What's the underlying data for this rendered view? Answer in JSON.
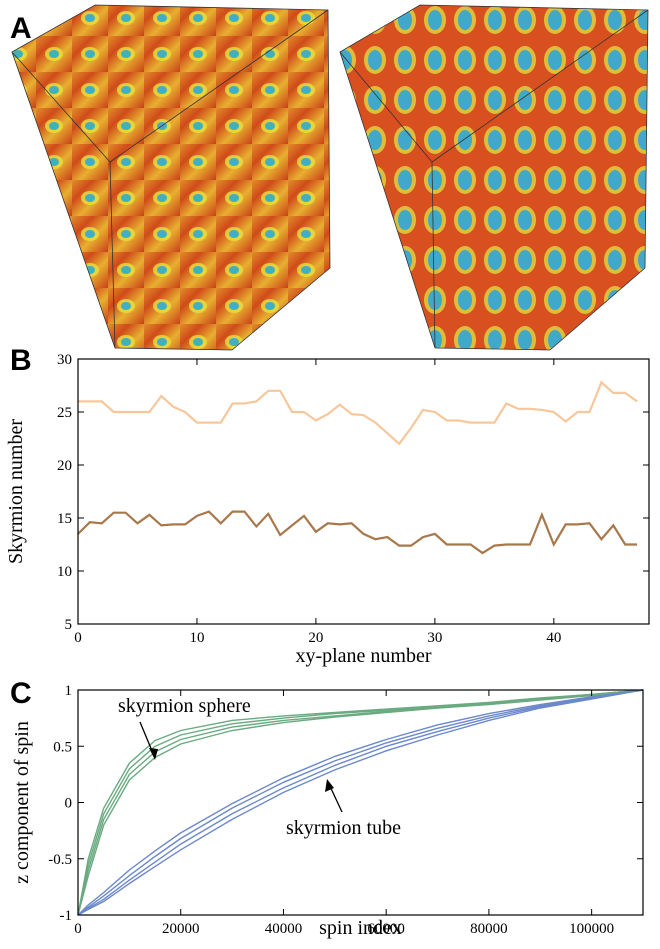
{
  "panel_labels": [
    "A",
    "B",
    "C"
  ],
  "chart_data": [
    {
      "type": "line",
      "ylabel": "Skyrmion number",
      "xlabel": "xy-plane number",
      "x": [
        0,
        1,
        2,
        3,
        4,
        5,
        6,
        7,
        8,
        9,
        10,
        11,
        12,
        13,
        14,
        15,
        16,
        17,
        18,
        19,
        20,
        21,
        22,
        23,
        24,
        25,
        26,
        27,
        28,
        29,
        30,
        31,
        32,
        33,
        34,
        35,
        36,
        37,
        38,
        39,
        40,
        41,
        42,
        43,
        44,
        45,
        46,
        47
      ],
      "xlim": [
        0,
        48
      ],
      "xticks": [
        0,
        10,
        20,
        30,
        40
      ],
      "ylim": [
        5,
        30
      ],
      "yticks": [
        5,
        10,
        15,
        20,
        25,
        30
      ],
      "series": [
        {
          "color": "#f7c79b",
          "values": [
            26,
            26,
            26,
            25,
            25,
            25,
            25,
            26.5,
            25.5,
            25,
            24,
            24,
            24,
            25.8,
            25.8,
            26,
            27,
            27,
            25,
            25,
            24.2,
            24.8,
            25.7,
            24.8,
            24.7,
            24,
            23,
            22,
            23.5,
            25.2,
            25,
            24.2,
            24.2,
            24,
            24,
            24,
            25.8,
            25.3,
            25.3,
            25.2,
            25,
            24.1,
            25,
            25,
            27.8,
            26.8,
            26.8,
            26
          ]
        },
        {
          "color": "#a8784a",
          "values": [
            13.5,
            14.6,
            14.5,
            15.5,
            15.5,
            14.5,
            15.3,
            14.3,
            14.4,
            14.4,
            15.2,
            15.6,
            14.5,
            15.6,
            15.6,
            14.2,
            15.4,
            13.4,
            14.3,
            15.2,
            13.7,
            14.5,
            14.4,
            14.5,
            13.5,
            13,
            13.2,
            12.4,
            12.4,
            13.2,
            13.5,
            12.5,
            12.5,
            12.5,
            11.7,
            12.4,
            12.5,
            12.5,
            12.5,
            15.3,
            12.5,
            14.4,
            14.4,
            14.5,
            13,
            14.3,
            12.5,
            12.5
          ]
        }
      ]
    },
    {
      "type": "line",
      "ylabel": "z component of spin",
      "xlabel": "spin index",
      "x": [
        0,
        2000,
        5000,
        10000,
        15000,
        20000,
        30000,
        40000,
        50000,
        60000,
        70000,
        80000,
        90000,
        100000,
        110000
      ],
      "xlim": [
        0,
        110000
      ],
      "xticks": [
        0,
        20000,
        40000,
        60000,
        80000,
        100000
      ],
      "ylim": [
        -1,
        1
      ],
      "yticks": [
        -1,
        -0.5,
        0,
        0.5,
        1
      ],
      "annotations": [
        "skyrmion sphere",
        "skyrmion tube"
      ],
      "series": [
        {
          "color": "#6aaa80",
          "values": [
            -1,
            -0.5,
            -0.05,
            0.35,
            0.55,
            0.64,
            0.73,
            0.77,
            0.8,
            0.83,
            0.86,
            0.89,
            0.93,
            0.96,
            1
          ]
        },
        {
          "color": "#6aaa80",
          "values": [
            -1,
            -0.55,
            -0.1,
            0.3,
            0.5,
            0.6,
            0.7,
            0.75,
            0.79,
            0.82,
            0.85,
            0.88,
            0.92,
            0.96,
            1
          ]
        },
        {
          "color": "#6aaa80",
          "values": [
            -1,
            -0.6,
            -0.15,
            0.25,
            0.45,
            0.56,
            0.67,
            0.73,
            0.77,
            0.81,
            0.84,
            0.88,
            0.92,
            0.96,
            1
          ]
        },
        {
          "color": "#6aaa80",
          "values": [
            -1,
            -0.65,
            -0.2,
            0.2,
            0.4,
            0.52,
            0.64,
            0.71,
            0.76,
            0.8,
            0.84,
            0.87,
            0.91,
            0.95,
            1
          ]
        },
        {
          "color": "#6b88cc",
          "values": [
            -1,
            -0.91,
            -0.8,
            -0.6,
            -0.43,
            -0.27,
            -0.01,
            0.22,
            0.41,
            0.56,
            0.69,
            0.79,
            0.87,
            0.94,
            1
          ]
        },
        {
          "color": "#6b88cc",
          "values": [
            -1,
            -0.93,
            -0.83,
            -0.65,
            -0.48,
            -0.32,
            -0.05,
            0.18,
            0.37,
            0.53,
            0.66,
            0.77,
            0.86,
            0.93,
            1
          ]
        },
        {
          "color": "#6b88cc",
          "values": [
            -1,
            -0.94,
            -0.86,
            -0.69,
            -0.53,
            -0.37,
            -0.1,
            0.13,
            0.33,
            0.5,
            0.63,
            0.75,
            0.85,
            0.93,
            1
          ]
        },
        {
          "color": "#6b88cc",
          "values": [
            -1,
            -0.95,
            -0.88,
            -0.72,
            -0.57,
            -0.42,
            -0.15,
            0.09,
            0.29,
            0.46,
            0.6,
            0.73,
            0.84,
            0.92,
            1
          ]
        }
      ]
    }
  ]
}
